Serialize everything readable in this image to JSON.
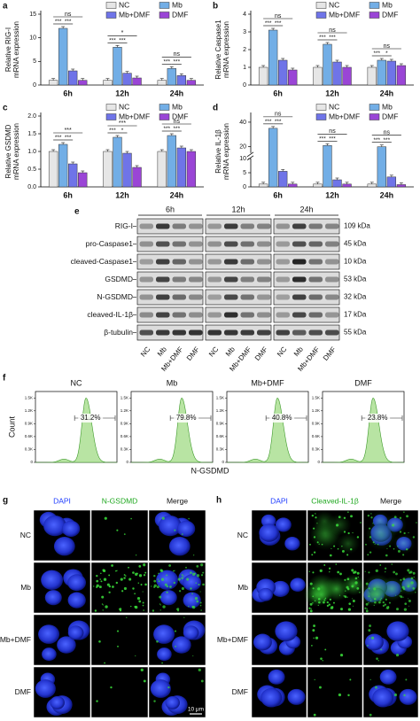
{
  "chart_data": [
    {
      "type": "bar",
      "panel": "a",
      "y_label": [
        "Relative RIG-I",
        "mRNA expression"
      ],
      "categories": [
        "6h",
        "12h",
        "24h"
      ],
      "series": [
        {
          "name": "NC",
          "color": "#e6e6e6",
          "values": [
            1,
            1,
            1
          ]
        },
        {
          "name": "Mb",
          "color": "#72aee6",
          "values": [
            12,
            8,
            3.5
          ]
        },
        {
          "name": "Mb+DMF",
          "color": "#6f74e8",
          "values": [
            3,
            2.5,
            2
          ]
        },
        {
          "name": "DMF",
          "color": "#9a45d6",
          "values": [
            1,
            1.5,
            1
          ]
        }
      ],
      "ylim": [
        0,
        15
      ],
      "yticks": [
        0,
        5,
        10,
        15
      ],
      "legend": "upper right",
      "significance": [
        [
          "ns",
          "***",
          "***"
        ],
        [
          "*",
          "***",
          "***"
        ],
        [
          "ns",
          "***",
          "***"
        ]
      ]
    },
    {
      "type": "bar",
      "panel": "b",
      "y_label": [
        "Relative Caspase1",
        "mRNA expression"
      ],
      "categories": [
        "6h",
        "12h",
        "24h"
      ],
      "series": [
        {
          "name": "NC",
          "color": "#e6e6e6",
          "values": [
            1,
            1,
            1
          ]
        },
        {
          "name": "Mb",
          "color": "#72aee6",
          "values": [
            3.1,
            2.3,
            1.4
          ]
        },
        {
          "name": "Mb+DMF",
          "color": "#6f74e8",
          "values": [
            1.4,
            1.3,
            1.35
          ]
        },
        {
          "name": "DMF",
          "color": "#9a45d6",
          "values": [
            0.85,
            1,
            1.1
          ]
        }
      ],
      "ylim": [
        0,
        4
      ],
      "yticks": [
        0,
        1,
        2,
        3,
        4
      ],
      "legend": "upper right",
      "significance": [
        [
          "ns",
          "***",
          "***"
        ],
        [
          "ns",
          "***",
          "***"
        ],
        [
          "ns",
          "***",
          "*"
        ]
      ]
    },
    {
      "type": "bar",
      "panel": "c",
      "y_label": [
        "Relative GSDMD",
        "mRNA expression"
      ],
      "categories": [
        "6h",
        "12h",
        "24h"
      ],
      "series": [
        {
          "name": "NC",
          "color": "#e6e6e6",
          "values": [
            1,
            1,
            1
          ]
        },
        {
          "name": "Mb",
          "color": "#72aee6",
          "values": [
            1.2,
            1.4,
            1.45
          ]
        },
        {
          "name": "Mb+DMF",
          "color": "#6f74e8",
          "values": [
            0.65,
            0.95,
            1.1
          ]
        },
        {
          "name": "DMF",
          "color": "#9a45d6",
          "values": [
            0.4,
            0.55,
            1
          ]
        }
      ],
      "ylim": [
        0,
        2
      ],
      "yticks": [
        {
          "value": 0,
          "label": "0.0"
        },
        0.5,
        {
          "value": 1,
          "label": "1.0"
        },
        1.5,
        {
          "value": 2,
          "label": "2.0"
        }
      ],
      "legend": "upper right",
      "significance": [
        [
          "***",
          "***",
          "***"
        ],
        [
          "***",
          "***",
          "*"
        ],
        [
          "ns",
          "***",
          "***"
        ]
      ]
    },
    {
      "type": "bar",
      "panel": "d",
      "y_label": [
        "Relative IL-1β",
        "mRNA expression"
      ],
      "categories": [
        "6h",
        "12h",
        "24h"
      ],
      "series": [
        {
          "name": "NC",
          "color": "#e6e6e6",
          "values": [
            1,
            1,
            1
          ]
        },
        {
          "name": "Mb",
          "color": "#72aee6",
          "values": [
            35,
            21,
            20
          ]
        },
        {
          "name": "Mb+DMF",
          "color": "#6f74e8",
          "values": [
            5.5,
            2.5,
            3.5
          ]
        },
        {
          "name": "DMF",
          "color": "#9a45d6",
          "values": [
            1,
            1,
            0.8
          ]
        }
      ],
      "ylim": [
        0,
        45
      ],
      "yticks": [
        0,
        5,
        10,
        20,
        40
      ],
      "axis_break": [
        10,
        15
      ],
      "legend": "upper right",
      "significance": [
        [
          "ns",
          "***",
          "***"
        ],
        [
          "ns",
          "***",
          "***"
        ],
        [
          "ns",
          "***",
          "***"
        ]
      ]
    },
    {
      "type": "flow",
      "title": "NC",
      "ylim": [
        0,
        1650
      ],
      "yticks": [
        0,
        {
          "value": 300,
          "label": "0.3K"
        },
        {
          "value": 600,
          "label": "0.6K"
        },
        {
          "value": 900,
          "label": "0.9K"
        },
        {
          "value": 1200,
          "label": "1.2K"
        },
        {
          "value": 1500,
          "label": "1.5K"
        }
      ],
      "peak": 1500,
      "values": [
        31.2
      ],
      "value_labels": [
        "31.2%"
      ],
      "color": "#b8e4a3"
    },
    {
      "type": "flow",
      "title": "Mb",
      "ylim": [
        0,
        1650
      ],
      "yticks": [
        0,
        {
          "value": 300,
          "label": "0.3K"
        },
        {
          "value": 600,
          "label": "0.6K"
        },
        {
          "value": 900,
          "label": "0.9K"
        },
        {
          "value": 1200,
          "label": "1.2K"
        },
        {
          "value": 1500,
          "label": "1.5K"
        }
      ],
      "peak": 1500,
      "values": [
        79.8
      ],
      "value_labels": [
        "79.8%"
      ],
      "color": "#b8e4a3"
    },
    {
      "type": "flow",
      "title": "Mb+DMF",
      "ylim": [
        0,
        1650
      ],
      "yticks": [
        0,
        {
          "value": 300,
          "label": "0.3K"
        },
        {
          "value": 600,
          "label": "0.6K"
        },
        {
          "value": 900,
          "label": "0.9K"
        },
        {
          "value": 1200,
          "label": "1.2K"
        },
        {
          "value": 1500,
          "label": "1.5K"
        }
      ],
      "peak": 1500,
      "values": [
        40.8
      ],
      "value_labels": [
        "40.8%"
      ],
      "color": "#b8e4a3"
    },
    {
      "type": "flow",
      "title": "DMF",
      "ylim": [
        0,
        1650
      ],
      "yticks": [
        0,
        {
          "value": 300,
          "label": "0.3K"
        },
        {
          "value": 600,
          "label": "0.6K"
        },
        {
          "value": 900,
          "label": "0.9K"
        },
        {
          "value": 1200,
          "label": "1.2K"
        },
        {
          "value": 1500,
          "label": "1.5K"
        }
      ],
      "peak": 1500,
      "values": [
        23.8
      ],
      "value_labels": [
        "23.8%"
      ],
      "color": "#b8e4a3"
    }
  ],
  "flow_axes": {
    "panel": "f",
    "y_label": "Count",
    "x_label": "N-GSDMD"
  },
  "blot": {
    "panel": "e",
    "times": [
      "6h",
      "12h",
      "24h"
    ],
    "lanes": [
      "NC",
      "Mb",
      "Mb+DMF",
      "DMF"
    ],
    "rows": [
      {
        "label": "RIG-I",
        "size": "109 kDa"
      },
      {
        "label": "pro-Caspase1",
        "size": "45 kDa"
      },
      {
        "label": "cleaved-Caspase1",
        "size": "10 kDa"
      },
      {
        "label": "GSDMD",
        "size": "53 kDa"
      },
      {
        "label": "N-GSDMD",
        "size": "32 kDa"
      },
      {
        "label": "cleaved-IL-1β",
        "size": "17 kDa"
      },
      {
        "label": "β-tubulin",
        "size": "55 kDa"
      }
    ]
  },
  "microscopy": [
    {
      "panel": "g",
      "columns": [
        "DAPI",
        "N-GSDMD",
        "Merge"
      ],
      "rows": [
        "NC",
        "Mb",
        "Mb+DMF",
        "DMF"
      ],
      "scale_bar": "10 μm"
    },
    {
      "panel": "h",
      "columns": [
        "DAPI",
        "Cleaved-IL-1β",
        "Merge"
      ],
      "rows": [
        "NC",
        "Mb",
        "Mb+DMF",
        "DMF"
      ]
    }
  ]
}
